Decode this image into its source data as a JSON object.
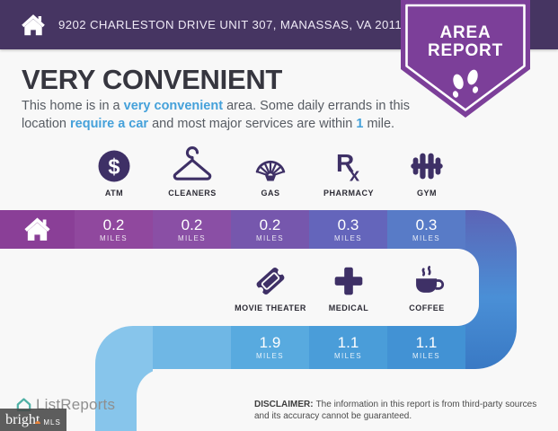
{
  "palette": {
    "header_bar": "#463562",
    "badge_purple": "#7c3f99",
    "icon_ink": "#3e3066",
    "title_ink": "#36363f",
    "body_ink": "#575c63",
    "accent_blue": "#45a1da",
    "page_bg": "#f8f8f8",
    "home_segment": "#8a3f97",
    "blob_gradient": "linear-gradient(180deg, #5c64b6 0%, #4a8fd6 55%, #3979c4 100%)",
    "elbow_blue": "#87c5eb",
    "lead_segment_blue": "#6fb7e5",
    "logo_gray": "#8f8f8f",
    "logo_teal": "#4fb0a5",
    "watermark_orange": "#e8833a"
  },
  "header": {
    "address": "9202 CHARLESTON DRIVE UNIT 307, MANASSAS, VA 20110",
    "badge": {
      "line1": "AREA",
      "line2": "REPORT"
    }
  },
  "hero": {
    "title": "VERY CONVENIENT",
    "description_parts": [
      {
        "t": "This home is in a "
      },
      {
        "t": "very convenient",
        "accent": true
      },
      {
        "t": " area. Some daily errands in this location "
      },
      {
        "t": "require a car",
        "accent": true
      },
      {
        "t": " and most major services are within "
      },
      {
        "t": "1",
        "accent": true
      },
      {
        "t": " mile."
      }
    ]
  },
  "ribbon": {
    "unit_label": "MILES"
  },
  "row1": {
    "items": [
      {
        "label": "ATM",
        "icon": "atm-icon",
        "distance": "0.2",
        "color": "#90489e"
      },
      {
        "label": "CLEANERS",
        "icon": "hanger-icon",
        "distance": "0.2",
        "color": "#8a4fa5"
      },
      {
        "label": "GAS",
        "icon": "shell-gas-icon",
        "distance": "0.2",
        "color": "#7657ad"
      },
      {
        "label": "PHARMACY",
        "icon": "rx-pharmacy-icon",
        "distance": "0.3",
        "color": "#6465bb"
      },
      {
        "label": "GYM",
        "icon": "dumbbell-icon",
        "distance": "0.3",
        "color": "#587bc7"
      }
    ]
  },
  "row2": {
    "items": [
      {
        "label": "MOVIE THEATER",
        "icon": "ticket-icon",
        "distance": "1.9",
        "color": "#58aadf"
      },
      {
        "label": "MEDICAL",
        "icon": "medical-cross-icon",
        "distance": "1.1",
        "color": "#4a9dd9"
      },
      {
        "label": "COFFEE",
        "icon": "coffee-cup-icon",
        "distance": "1.1",
        "color": "#4292d4"
      }
    ]
  },
  "footer": {
    "logo_text": "ListReports",
    "watermark": {
      "brand": "bright",
      "suffix": "MLS"
    },
    "disclaimer": {
      "label": "DISCLAIMER:",
      "text": "The information in this report is from third-party sources and its accuracy cannot be guaranteed."
    }
  }
}
